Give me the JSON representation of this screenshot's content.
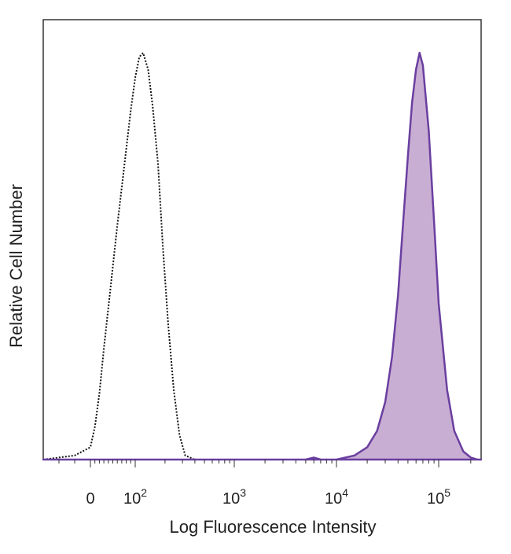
{
  "chart_data": {
    "type": "area",
    "xlabel": "Log Fluorescence Intensity",
    "ylabel": "Relative Cell Number",
    "x_scale": "biexponential",
    "xlim": [
      -30,
      250000
    ],
    "ylim": [
      0,
      1
    ],
    "grid": false,
    "x_ticks": [
      {
        "value": 0,
        "label": "0"
      },
      {
        "value": 100,
        "label": "10",
        "exp": "2"
      },
      {
        "value": 1000,
        "label": "10",
        "exp": "3"
      },
      {
        "value": 10000,
        "label": "10",
        "exp": "4"
      },
      {
        "value": 100000,
        "label": "10",
        "exp": "5"
      }
    ],
    "series": [
      {
        "style": "dotted-outline",
        "color": "#111111",
        "x": [
          -30,
          -10,
          0,
          10,
          20,
          30,
          45,
          60,
          75,
          90,
          100,
          110,
          120,
          135,
          150,
          170,
          190,
          215,
          245,
          280,
          320,
          400,
          500
        ],
        "y": [
          0.0,
          0.01,
          0.03,
          0.08,
          0.16,
          0.27,
          0.42,
          0.57,
          0.71,
          0.85,
          0.93,
          0.98,
          0.99,
          0.95,
          0.86,
          0.72,
          0.52,
          0.33,
          0.17,
          0.06,
          0.01,
          0.0,
          0.0
        ]
      },
      {
        "style": "filled",
        "color": "#6a3fa0",
        "fill": "#c9aed3",
        "x": [
          -30,
          300,
          1000,
          3000,
          5000,
          6000,
          7000,
          10000,
          15000,
          20000,
          25000,
          30000,
          35000,
          40000,
          45000,
          50000,
          55000,
          60000,
          65000,
          70000,
          80000,
          90000,
          100000,
          120000,
          140000,
          170000,
          200000,
          230000,
          250000
        ],
        "y": [
          0.0,
          0.0,
          0.0,
          0.0,
          0.0,
          0.005,
          0.0,
          0.0,
          0.01,
          0.03,
          0.07,
          0.14,
          0.25,
          0.4,
          0.58,
          0.74,
          0.87,
          0.95,
          0.99,
          0.96,
          0.8,
          0.58,
          0.38,
          0.17,
          0.07,
          0.02,
          0.005,
          0.0,
          0.0
        ]
      }
    ]
  }
}
